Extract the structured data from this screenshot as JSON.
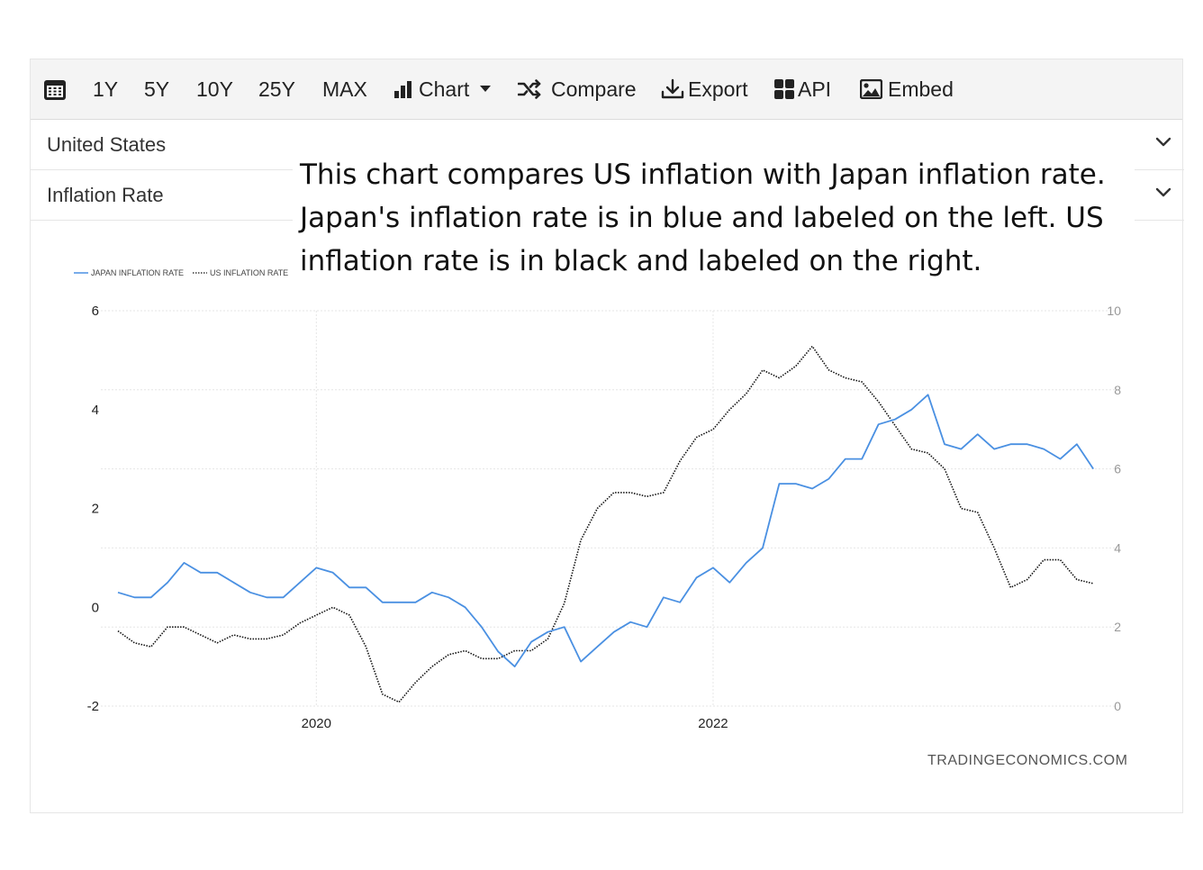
{
  "toolbar": {
    "ranges": [
      "1Y",
      "5Y",
      "10Y",
      "25Y",
      "MAX"
    ],
    "chart_label": "Chart",
    "compare_label": "Compare",
    "export_label": "Export",
    "api_label": "API",
    "embed_label": "Embed"
  },
  "selectors": {
    "country": "United States",
    "indicator": "Inflation Rate"
  },
  "annotation": "This chart compares US inflation with Japan inflation rate. Japan's inflation rate is in blue and labeled on the left. US inflation rate is in black and labeled on the right.",
  "credit": "TRADINGECONOMICS.COM",
  "chart_data": {
    "type": "line",
    "legend": [
      "JAPAN INFLATION RATE",
      "US INFLATION RATE"
    ],
    "legend_position": "top-left",
    "x_ticks": [
      "2020",
      "2022"
    ],
    "left_axis": {
      "ticks": [
        6,
        4,
        2,
        0,
        -2
      ],
      "ylim": [
        -2,
        6
      ]
    },
    "right_axis": {
      "ticks": [
        0,
        2,
        4,
        6,
        8,
        10
      ],
      "ylim": [
        0,
        10
      ]
    },
    "colors": {
      "japan": "#4a90e2",
      "us": "#111111",
      "grid": "#e6e6e6"
    },
    "series": [
      {
        "name": "JAPAN INFLATION RATE",
        "axis": "left",
        "values": [
          0.3,
          0.2,
          0.2,
          0.5,
          0.9,
          0.7,
          0.7,
          0.5,
          0.3,
          0.2,
          0.2,
          0.5,
          0.8,
          0.7,
          0.4,
          0.4,
          0.1,
          0.1,
          0.1,
          0.3,
          0.2,
          0.0,
          -0.4,
          -0.9,
          -1.2,
          -0.7,
          -0.5,
          -0.4,
          -1.1,
          -0.8,
          -0.5,
          -0.3,
          -0.4,
          0.2,
          0.1,
          0.6,
          0.8,
          0.5,
          0.9,
          1.2,
          2.5,
          2.5,
          2.4,
          2.6,
          3.0,
          3.0,
          3.7,
          3.8,
          4.0,
          4.3,
          3.3,
          3.2,
          3.5,
          3.2,
          3.3,
          3.3,
          3.2,
          3.0,
          3.3,
          2.8
        ]
      },
      {
        "name": "US INFLATION RATE",
        "axis": "right",
        "values": [
          1.9,
          1.6,
          1.5,
          2.0,
          2.0,
          1.8,
          1.6,
          1.8,
          1.7,
          1.7,
          1.8,
          2.1,
          2.3,
          2.5,
          2.3,
          1.5,
          0.3,
          0.1,
          0.6,
          1.0,
          1.3,
          1.4,
          1.2,
          1.2,
          1.4,
          1.4,
          1.7,
          2.6,
          4.2,
          5.0,
          5.4,
          5.4,
          5.3,
          5.4,
          6.2,
          6.8,
          7.0,
          7.5,
          7.9,
          8.5,
          8.3,
          8.6,
          9.1,
          8.5,
          8.3,
          8.2,
          7.7,
          7.1,
          6.5,
          6.4,
          6.0,
          5.0,
          4.9,
          4.0,
          3.0,
          3.2,
          3.7,
          3.7,
          3.2,
          3.1
        ]
      }
    ]
  }
}
